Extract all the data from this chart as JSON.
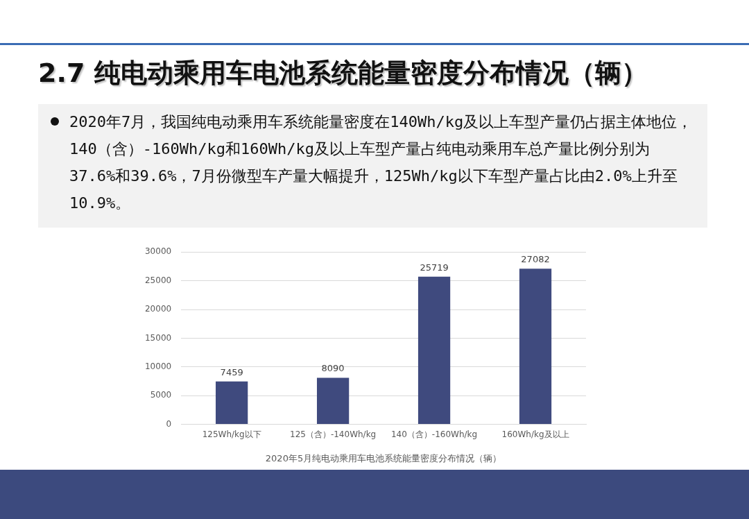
{
  "chart_data": {
    "type": "bar",
    "title": "2.7 纯电动乘用车电池系统能量密度分布情况（辆）",
    "subtitle": "2020年7月，我国纯电动乘用车系统能量密度在140Wh/kg及以上车型产量仍占据主体地位，140（含）-160Wh/kg和160Wh/kg及以上车型产量占纯电动乘用车总产量比例分别为37.6%和39.6%，7月份微型车产量大幅提升，125Wh/kg以下车型产量占比由2.0%上升至10.9%。",
    "categories": [
      "125Wh/kg以下",
      "125（含）-140Wh/kg",
      "140（含）-160Wh/kg",
      "160Wh/kg及以上"
    ],
    "values": [
      7459,
      8090,
      25719,
      27082
    ],
    "color": "#3f4a7e",
    "ylim": [
      0,
      30000
    ],
    "yticks": [
      0,
      5000,
      10000,
      15000,
      20000,
      25000,
      30000
    ],
    "grid": "y",
    "data_labels": true,
    "annotations": [
      "2020年5月纯电动乘用车电池系统能量密度分布情况（辆）"
    ]
  }
}
